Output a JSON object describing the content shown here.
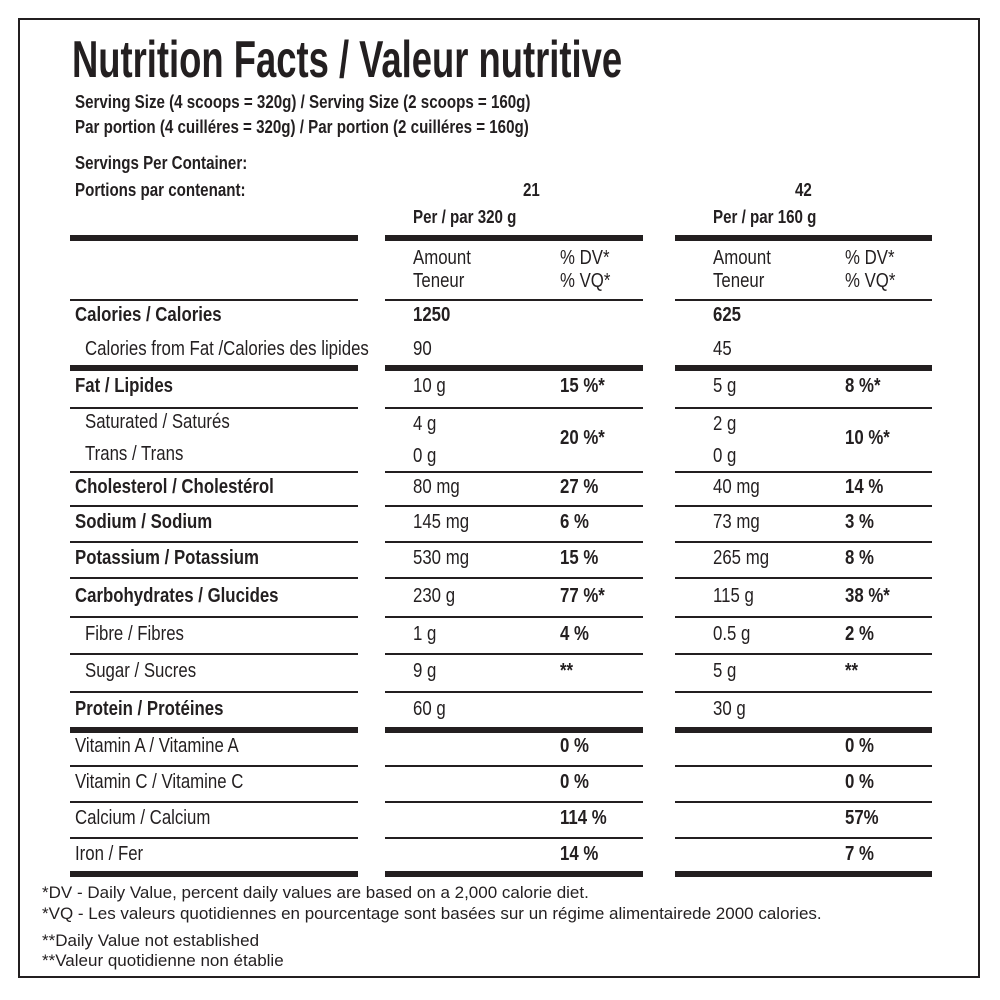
{
  "title": "Nutrition Facts / Valeur nutritive",
  "serving_size": [
    "Serving Size (4 scoops = 320g) / Serving Size (2 scoops = 160g)",
    "Par portion (4 cuilléres = 320g) / Par portion (2 cuilléres = 160g)"
  ],
  "servings_label": [
    "Servings Per Container:",
    "Portions par contenant:"
  ],
  "columns": [
    {
      "servings": "21",
      "per": "Per / par  320 g",
      "amount": "Amount",
      "teneur": "Teneur",
      "dv": "% DV*",
      "vq": "% VQ*"
    },
    {
      "servings": "42",
      "per": "Per / par  160 g",
      "amount": "Amount",
      "teneur": "Teneur",
      "dv": "% DV*",
      "vq": "% VQ*"
    }
  ],
  "rows": [
    {
      "label": "Calories / Calories",
      "bold": true,
      "bold_amount": true,
      "cells": [
        {
          "amount": "1250"
        },
        {
          "amount": "625"
        }
      ]
    },
    {
      "label": "Calories from Fat /Calories des lipides",
      "indent": true,
      "cells": [
        {
          "amount": "90"
        },
        {
          "amount": "45"
        }
      ]
    },
    {
      "label": "Fat / Lipides",
      "bold": true,
      "cells": [
        {
          "amount": "10 g",
          "dv": "15 %*"
        },
        {
          "amount": "5 g",
          "dv": "8 %*"
        }
      ]
    },
    {
      "labels": [
        "Saturated / Saturés",
        "Trans / Trans"
      ],
      "indent": true,
      "cells": [
        {
          "amounts": [
            "4 g",
            "0 g"
          ],
          "dv": "20 %*"
        },
        {
          "amounts": [
            "2 g",
            "0 g"
          ],
          "dv": "10 %*"
        }
      ]
    },
    {
      "label": "Cholesterol / Cholestérol",
      "bold": true,
      "cells": [
        {
          "amount": "80 mg",
          "dv": "27 %"
        },
        {
          "amount": "40 mg",
          "dv": "14 %"
        }
      ]
    },
    {
      "label": "Sodium / Sodium",
      "bold": true,
      "cells": [
        {
          "amount": "145 mg",
          "dv": "6 %"
        },
        {
          "amount": "73 mg",
          "dv": "3 %"
        }
      ]
    },
    {
      "label": "Potassium / Potassium",
      "bold": true,
      "cells": [
        {
          "amount": "530 mg",
          "dv": "15 %"
        },
        {
          "amount": "265 mg",
          "dv": "8 %"
        }
      ]
    },
    {
      "label": "Carbohydrates / Glucides",
      "bold": true,
      "cells": [
        {
          "amount": "230 g",
          "dv": "77 %*"
        },
        {
          "amount": "115 g",
          "dv": "38 %*"
        }
      ]
    },
    {
      "label": "Fibre / Fibres",
      "indent": true,
      "cells": [
        {
          "amount": "1 g",
          "dv": "4 %"
        },
        {
          "amount": "0.5 g",
          "dv": "2 %"
        }
      ]
    },
    {
      "label": "Sugar / Sucres",
      "indent": true,
      "cells": [
        {
          "amount": "9 g",
          "dv": "**"
        },
        {
          "amount": "5 g",
          "dv": "**"
        }
      ]
    },
    {
      "label": "Protein / Protéines",
      "bold": true,
      "cells": [
        {
          "amount": "60 g"
        },
        {
          "amount": "30 g"
        }
      ]
    },
    {
      "label": "Vitamin A / Vitamine A",
      "cells": [
        {
          "dv": "0 %"
        },
        {
          "dv": "0 %"
        }
      ]
    },
    {
      "label": "Vitamin C / Vitamine C",
      "cells": [
        {
          "dv": "0 %"
        },
        {
          "dv": "0 %"
        }
      ]
    },
    {
      "label": "Calcium / Calcium",
      "cells": [
        {
          "dv": "114 %"
        },
        {
          "dv": "57%"
        }
      ]
    },
    {
      "label": "Iron / Fer",
      "cells": [
        {
          "dv": "14 %"
        },
        {
          "dv": "7 %"
        }
      ]
    }
  ],
  "footnotes": [
    "*DV - Daily Value, percent daily values are based on a 2,000 calorie diet.",
    "*VQ - Les valeurs quotidiennes en pourcentage sont basées sur un régime alimentairede 2000 calories.",
    "**Daily Value not established",
    "**Valeur quotidienne non établie"
  ]
}
